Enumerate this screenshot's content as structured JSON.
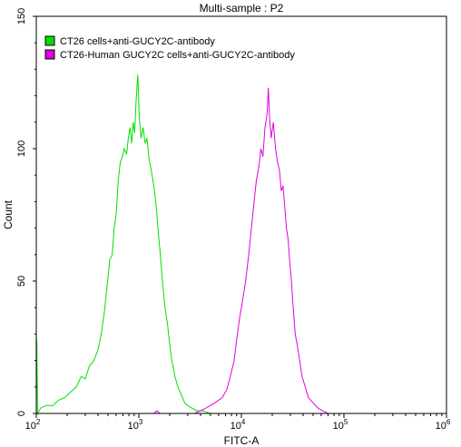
{
  "chart_data": {
    "type": "line",
    "title": "Multi-sample : P2",
    "xlabel": "FITC-A",
    "ylabel": "Count",
    "xscale": "log",
    "xlim": [
      100,
      1000000
    ],
    "ylim": [
      0,
      150
    ],
    "x_ticks": [
      {
        "value": 100,
        "base": "10",
        "exp": "2"
      },
      {
        "value": 1000,
        "base": "10",
        "exp": "3"
      },
      {
        "value": 10000,
        "base": "10",
        "exp": "4"
      },
      {
        "value": 100000,
        "base": "10",
        "exp": "5"
      },
      {
        "value": 1000000,
        "base": "10",
        "exp": "6"
      }
    ],
    "y_ticks": [
      {
        "value": 0,
        "label": "0"
      },
      {
        "value": 50,
        "label": "50"
      },
      {
        "value": 100,
        "label": "100"
      },
      {
        "value": 150,
        "label": "150"
      }
    ],
    "legend_position": "top-left",
    "series": [
      {
        "name": "CT26 cells+anti-GUCY2C-antibody",
        "color": "#00e000",
        "points": [
          [
            100,
            0
          ],
          [
            101,
            28
          ],
          [
            103,
            0
          ],
          [
            110,
            2
          ],
          [
            125,
            3
          ],
          [
            145,
            3
          ],
          [
            165,
            5
          ],
          [
            190,
            6
          ],
          [
            215,
            8
          ],
          [
            245,
            10
          ],
          [
            275,
            14
          ],
          [
            300,
            13
          ],
          [
            330,
            18
          ],
          [
            365,
            20
          ],
          [
            400,
            24
          ],
          [
            430,
            30
          ],
          [
            460,
            38
          ],
          [
            490,
            48
          ],
          [
            520,
            58
          ],
          [
            550,
            60
          ],
          [
            575,
            70
          ],
          [
            600,
            75
          ],
          [
            630,
            88
          ],
          [
            660,
            95
          ],
          [
            690,
            97
          ],
          [
            720,
            100
          ],
          [
            760,
            98
          ],
          [
            790,
            104
          ],
          [
            820,
            108
          ],
          [
            850,
            102
          ],
          [
            880,
            110
          ],
          [
            910,
            106
          ],
          [
            940,
            118
          ],
          [
            975,
            128
          ],
          [
            1010,
            112
          ],
          [
            1050,
            104
          ],
          [
            1100,
            108
          ],
          [
            1150,
            102
          ],
          [
            1200,
            104
          ],
          [
            1260,
            96
          ],
          [
            1320,
            92
          ],
          [
            1400,
            86
          ],
          [
            1480,
            78
          ],
          [
            1550,
            68
          ],
          [
            1620,
            60
          ],
          [
            1700,
            50
          ],
          [
            1800,
            40
          ],
          [
            1900,
            34
          ],
          [
            2000,
            26
          ],
          [
            2100,
            20
          ],
          [
            2250,
            14
          ],
          [
            2400,
            10
          ],
          [
            2600,
            7
          ],
          [
            2800,
            4
          ],
          [
            3000,
            3
          ],
          [
            3300,
            2
          ],
          [
            3700,
            1
          ],
          [
            4200,
            1
          ],
          [
            5000,
            0
          ],
          [
            6000,
            0
          ]
        ]
      },
      {
        "name": "CT26-Human GUCY2C cells+anti-GUCY2C-antibody",
        "color": "#e000e0",
        "points": [
          [
            1400,
            0
          ],
          [
            1500,
            1
          ],
          [
            1600,
            0
          ],
          [
            3500,
            0
          ],
          [
            4500,
            2
          ],
          [
            5500,
            4
          ],
          [
            6500,
            6
          ],
          [
            7200,
            9
          ],
          [
            7800,
            14
          ],
          [
            8500,
            20
          ],
          [
            9000,
            28
          ],
          [
            9600,
            36
          ],
          [
            10200,
            42
          ],
          [
            11000,
            50
          ],
          [
            11800,
            60
          ],
          [
            12500,
            70
          ],
          [
            13300,
            80
          ],
          [
            14000,
            88
          ],
          [
            14800,
            93
          ],
          [
            15500,
            100
          ],
          [
            16200,
            97
          ],
          [
            17000,
            108
          ],
          [
            17800,
            113
          ],
          [
            18300,
            123
          ],
          [
            18800,
            112
          ],
          [
            19500,
            104
          ],
          [
            20500,
            110
          ],
          [
            21500,
            100
          ],
          [
            22500,
            95
          ],
          [
            23500,
            92
          ],
          [
            24500,
            84
          ],
          [
            25500,
            86
          ],
          [
            26500,
            78
          ],
          [
            27500,
            70
          ],
          [
            28500,
            66
          ],
          [
            29500,
            58
          ],
          [
            30500,
            52
          ],
          [
            32000,
            40
          ],
          [
            33500,
            30
          ],
          [
            35000,
            26
          ],
          [
            37000,
            20
          ],
          [
            39000,
            14
          ],
          [
            42000,
            10
          ],
          [
            45000,
            6
          ],
          [
            50000,
            4
          ],
          [
            56000,
            2
          ],
          [
            62000,
            1
          ],
          [
            70000,
            0
          ],
          [
            80000,
            0
          ]
        ]
      }
    ]
  }
}
